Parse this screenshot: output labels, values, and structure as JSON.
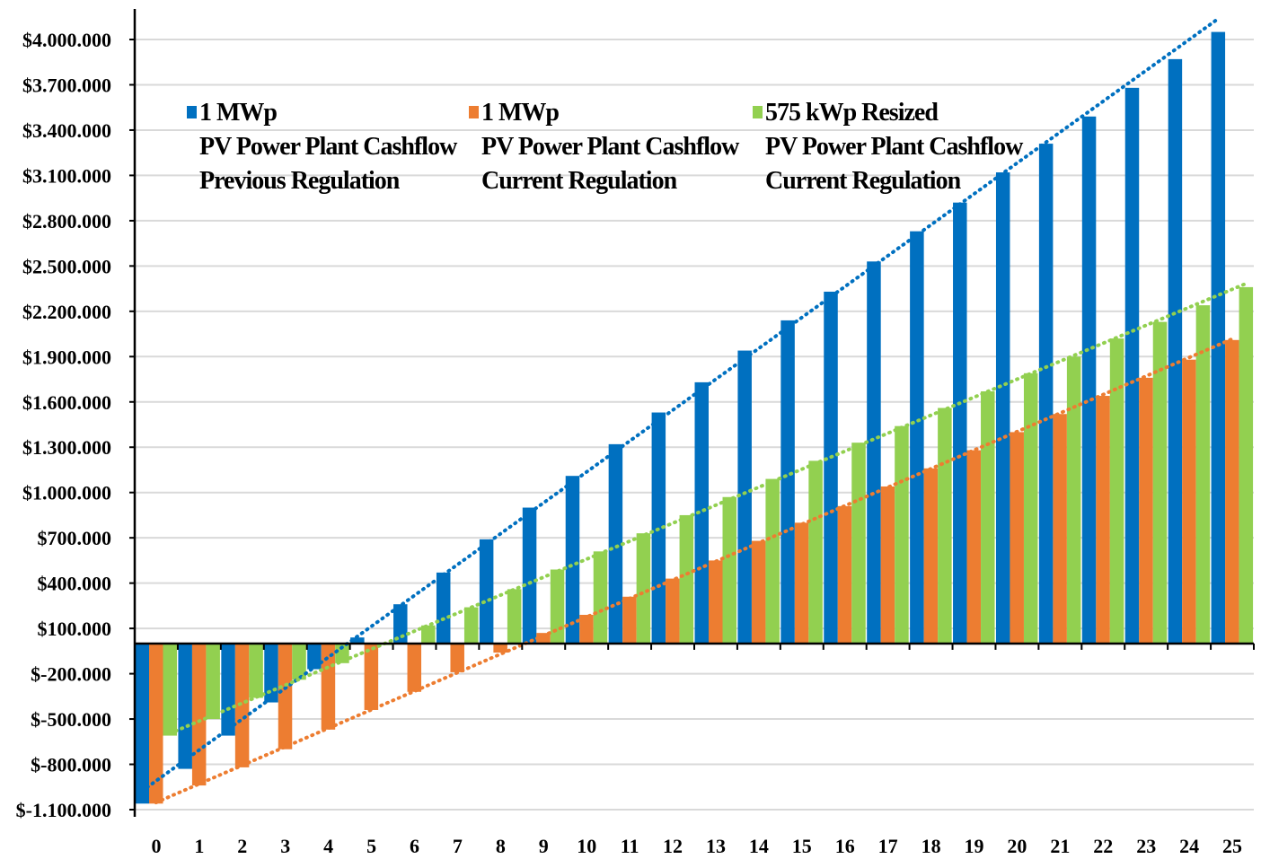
{
  "chart_data": {
    "type": "bar",
    "title": "",
    "xlabel": "",
    "ylabel": "",
    "categories": [
      "0",
      "1",
      "2",
      "3",
      "4",
      "5",
      "6",
      "7",
      "8",
      "9",
      "10",
      "11",
      "12",
      "13",
      "14",
      "15",
      "16",
      "17",
      "18",
      "19",
      "20",
      "21",
      "22",
      "23",
      "24",
      "25"
    ],
    "yticks": [
      -1100000,
      -800000,
      -500000,
      -200000,
      100000,
      400000,
      700000,
      1000000,
      1300000,
      1600000,
      1900000,
      2200000,
      2500000,
      2800000,
      3100000,
      3400000,
      3700000,
      4000000
    ],
    "ytick_labels": [
      "$-1.100.000",
      "$-800.000",
      "$-500.000",
      "$-200.000",
      "$100.000",
      "$400.000",
      "$700.000",
      "$1.000.000",
      "$1.300.000",
      "$1.600.000",
      "$1.900.000",
      "$2.200.000",
      "$2.500.000",
      "$2.800.000",
      "$3.100.000",
      "$3.400.000",
      "$3.700.000",
      "$4.000.000"
    ],
    "ylim": [
      -1100000,
      4100000
    ],
    "grid": true,
    "legend_position": "top",
    "trendlines": "linear, dotted, per series",
    "series": [
      {
        "legend_lines": [
          "1 MWp",
          "PV Power Plant Cashflow",
          "Previous Regulation"
        ],
        "color": "#0070C0",
        "values": [
          -1060000,
          -830000,
          -610000,
          -390000,
          -170000,
          40000,
          260000,
          470000,
          690000,
          900000,
          1110000,
          1320000,
          1530000,
          1730000,
          1940000,
          2140000,
          2330000,
          2530000,
          2730000,
          2920000,
          3120000,
          3310000,
          3490000,
          3680000,
          3870000,
          4050000
        ]
      },
      {
        "legend_lines": [
          "1 MWp",
          "PV Power Plant Cashflow",
          "Current Regulation"
        ],
        "color": "#ED7D31",
        "values": [
          -1060000,
          -940000,
          -820000,
          -700000,
          -570000,
          -440000,
          -320000,
          -190000,
          -60000,
          70000,
          190000,
          310000,
          430000,
          550000,
          680000,
          800000,
          910000,
          1040000,
          1160000,
          1280000,
          1400000,
          1520000,
          1640000,
          1760000,
          1880000,
          2010000
        ]
      },
      {
        "legend_lines": [
          "575 kWp Resized",
          "PV Power Plant Cashflow",
          "Current Regulation"
        ],
        "color": "#92D050",
        "values": [
          -610000,
          -500000,
          -360000,
          -240000,
          -130000,
          -10000,
          120000,
          240000,
          360000,
          490000,
          610000,
          730000,
          850000,
          970000,
          1090000,
          1210000,
          1330000,
          1440000,
          1560000,
          1670000,
          1790000,
          1900000,
          2020000,
          2130000,
          2240000,
          2360000
        ]
      }
    ]
  }
}
